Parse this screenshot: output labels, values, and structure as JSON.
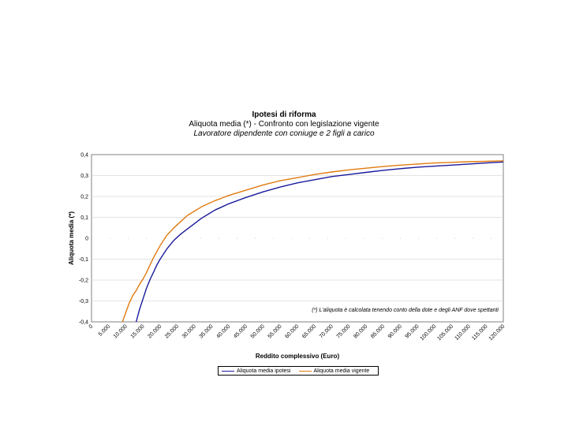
{
  "chart_data": {
    "type": "line",
    "title": "Ipotesi di riforma",
    "subtitle": "Aliquota media (*) - Confronto con legislazione vigente",
    "subtitle2": "Lavoratore dipendente con coniuge e 2 figli a carico",
    "xlabel": "Reddito complessivo (Euro)",
    "ylabel": "Aliquota media (*)",
    "annotation": "(*) L'aliquota è calcolata tenendo conto della dote e degli ANF dove spettanti",
    "xlim": [
      0,
      120000
    ],
    "ylim": [
      -0.4,
      0.4
    ],
    "x_ticks": [
      "0",
      "5.000",
      "10.000",
      "15.000",
      "20.000",
      "25.000",
      "30.000",
      "35.000",
      "40.000",
      "45.000",
      "50.000",
      "55.000",
      "60.000",
      "65.000",
      "70.000",
      "75.000",
      "80.000",
      "85.000",
      "90.000",
      "95.000",
      "100.000",
      "105.000",
      "110.000",
      "115.000",
      "120.000"
    ],
    "y_ticks": [
      "-0,4",
      "-0,3",
      "-0,2",
      "-0,1",
      "0",
      "0,1",
      "0,2",
      "0,3",
      "0,4"
    ],
    "y_tick_values": [
      -0.4,
      -0.3,
      -0.2,
      -0.1,
      0,
      0.1,
      0.2,
      0.3,
      0.4
    ],
    "grid": "horizontal",
    "legend_position": "bottom",
    "series": [
      {
        "name": "Aliquota media ipotesi",
        "color": "#1a1a9c",
        "x": [
          13000,
          14000,
          15000,
          16000,
          17000,
          18000,
          19000,
          20000,
          22000,
          24000,
          26000,
          28000,
          30000,
          32000,
          34000,
          36000,
          38000,
          40000,
          45000,
          50000,
          55000,
          60000,
          65000,
          70000,
          75000,
          80000,
          85000,
          90000,
          95000,
          100000,
          105000,
          110000,
          115000,
          120000
        ],
        "y": [
          -0.4,
          -0.34,
          -0.29,
          -0.24,
          -0.2,
          -0.165,
          -0.13,
          -0.1,
          -0.05,
          -0.01,
          0.02,
          0.045,
          0.07,
          0.095,
          0.115,
          0.135,
          0.15,
          0.165,
          0.195,
          0.222,
          0.245,
          0.265,
          0.28,
          0.295,
          0.305,
          0.315,
          0.325,
          0.333,
          0.34,
          0.345,
          0.35,
          0.355,
          0.36,
          0.365
        ]
      },
      {
        "name": "Aliquota media vigente",
        "color": "#e07b10",
        "x": [
          9000,
          10000,
          11000,
          12000,
          13000,
          14000,
          15000,
          16000,
          17000,
          18000,
          19000,
          20000,
          22000,
          24000,
          26000,
          28000,
          30000,
          32000,
          34000,
          36000,
          38000,
          40000,
          45000,
          50000,
          55000,
          60000,
          65000,
          70000,
          75000,
          80000,
          85000,
          90000,
          95000,
          100000,
          105000,
          110000,
          115000,
          120000
        ],
        "y": [
          -0.4,
          -0.355,
          -0.31,
          -0.275,
          -0.25,
          -0.22,
          -0.195,
          -0.165,
          -0.13,
          -0.095,
          -0.065,
          -0.035,
          0.015,
          0.05,
          0.08,
          0.11,
          0.13,
          0.15,
          0.165,
          0.18,
          0.192,
          0.205,
          0.23,
          0.255,
          0.275,
          0.29,
          0.305,
          0.317,
          0.327,
          0.335,
          0.343,
          0.35,
          0.355,
          0.36,
          0.363,
          0.366,
          0.368,
          0.37
        ]
      }
    ]
  }
}
